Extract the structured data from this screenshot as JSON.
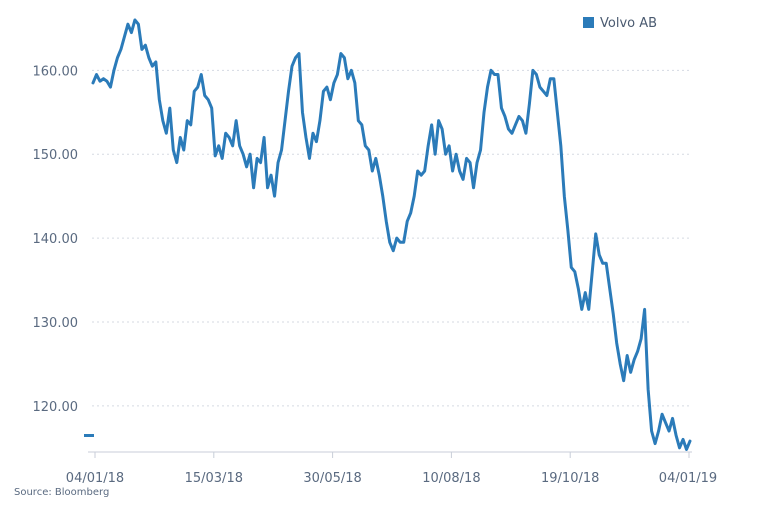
{
  "source": "Source: Bloomberg",
  "chart_data": {
    "type": "line",
    "title": "",
    "xlabel": "",
    "ylabel": "",
    "ylim": [
      114.5,
      166
    ],
    "y_ticks": [
      120,
      130,
      140,
      150,
      160
    ],
    "y_tick_labels": [
      "120.00",
      "130.00",
      "140.00",
      "150.00",
      "160.00"
    ],
    "x_tick_labels": [
      "04/01/18",
      "15/03/18",
      "30/05/18",
      "10/08/18",
      "19/10/18",
      "04/01/19"
    ],
    "grid": "horizontal dotted",
    "legend_position": "top-right",
    "series": [
      {
        "name": "Volvo AB",
        "color": "#2878b5",
        "values": [
          158.5,
          159.5,
          158.7,
          159,
          158.7,
          158,
          160,
          161.5,
          162.5,
          164,
          165.5,
          164.5,
          166,
          165.5,
          162.5,
          163,
          161.5,
          160.5,
          161,
          156.5,
          154,
          152.5,
          155.5,
          150.5,
          149,
          152,
          150.5,
          154,
          153.5,
          157.5,
          158,
          159.5,
          157,
          156.5,
          155.5,
          149.8,
          151,
          149.5,
          152.5,
          152,
          151,
          154,
          151,
          150,
          148.5,
          150,
          146,
          149.5,
          149,
          152,
          146,
          147.5,
          145,
          149,
          150.5,
          154,
          157.5,
          160.5,
          161.5,
          162,
          155,
          152,
          149.5,
          152.5,
          151.5,
          154,
          157.5,
          158,
          156.5,
          158.5,
          159.5,
          162,
          161.5,
          159,
          160,
          158.5,
          154,
          153.5,
          151,
          150.5,
          148,
          149.5,
          147.5,
          145,
          142,
          139.5,
          138.5,
          140,
          139.5,
          139.5,
          142,
          143,
          145,
          148,
          147.5,
          148,
          151,
          153.5,
          150,
          154,
          153,
          150,
          151,
          148,
          150,
          148,
          147,
          149.5,
          149,
          146,
          149,
          150.5,
          155,
          158,
          160,
          159.5,
          159.5,
          155.5,
          154.5,
          153,
          152.5,
          153.5,
          154.5,
          154,
          152.5,
          156,
          160,
          159.5,
          158,
          157.5,
          157,
          159,
          159,
          155,
          151,
          145,
          141,
          136.5,
          136,
          134,
          131.5,
          133.5,
          131.5,
          136,
          140.5,
          138,
          137,
          137,
          134,
          131,
          127.5,
          125,
          123,
          126,
          124,
          125.5,
          126.5,
          128,
          131.5,
          122,
          117,
          115.5,
          117,
          119,
          118,
          117,
          118.5,
          116.5,
          115,
          116,
          114.8,
          115.8
        ]
      }
    ]
  }
}
